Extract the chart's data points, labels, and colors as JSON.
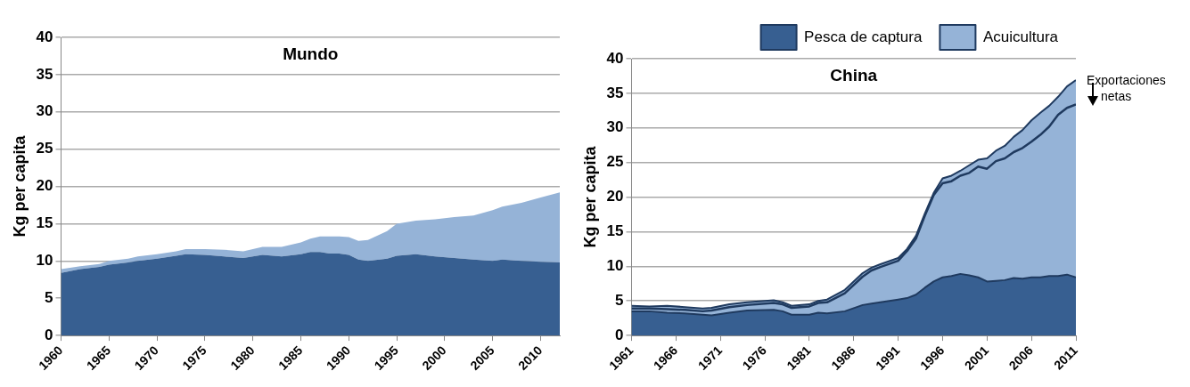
{
  "chart_data": [
    {
      "type": "area",
      "title": "Mundo",
      "ylabel": "Kg per capita",
      "stacked": true,
      "x": [
        1960,
        1962,
        1964,
        1965,
        1967,
        1968,
        1970,
        1972,
        1973,
        1975,
        1977,
        1979,
        1981,
        1983,
        1985,
        1986,
        1987,
        1988,
        1989,
        1990,
        1991,
        1992,
        1994,
        1995,
        1997,
        1999,
        2001,
        2003,
        2005,
        2006,
        2008,
        2010,
        2012
      ],
      "series": [
        {
          "color": "#375f91",
          "values": [
            8.4,
            8.9,
            9.2,
            9.5,
            9.8,
            10.0,
            10.3,
            10.7,
            10.9,
            10.8,
            10.6,
            10.4,
            10.8,
            10.6,
            10.9,
            11.2,
            11.2,
            11.0,
            11.0,
            10.8,
            10.2,
            10.0,
            10.3,
            10.7,
            10.9,
            10.6,
            10.4,
            10.2,
            10.0,
            10.2,
            10.0,
            9.9,
            9.8
          ]
        },
        {
          "color": "#95b3d7",
          "values": [
            0.5,
            0.4,
            0.4,
            0.5,
            0.5,
            0.6,
            0.6,
            0.6,
            0.7,
            0.8,
            0.9,
            0.9,
            1.1,
            1.3,
            1.6,
            1.8,
            2.1,
            2.3,
            2.3,
            2.4,
            2.5,
            2.8,
            3.7,
            4.3,
            4.5,
            5.0,
            5.5,
            5.9,
            6.8,
            7.1,
            7.8,
            8.6,
            9.4
          ]
        }
      ],
      "xlim": [
        1960,
        2012
      ],
      "xticks": [
        1960,
        1965,
        1970,
        1975,
        1980,
        1985,
        1990,
        1995,
        2000,
        2005,
        2010
      ],
      "ylim": [
        0,
        40
      ],
      "yticks": [
        0,
        5,
        10,
        15,
        20,
        25,
        30,
        35,
        40
      ],
      "grid": "y",
      "legend": false
    },
    {
      "type": "area",
      "title": "China",
      "ylabel": "Kg per capita",
      "stacked": true,
      "x": [
        1961,
        1963,
        1965,
        1967,
        1969,
        1970,
        1972,
        1974,
        1977,
        1978,
        1979,
        1981,
        1982,
        1983,
        1985,
        1987,
        1988,
        1989,
        1991,
        1992,
        1993,
        1994,
        1995,
        1996,
        1997,
        1998,
        1999,
        2000,
        2001,
        2002,
        2003,
        2004,
        2005,
        2006,
        2007,
        2008,
        2009,
        2010,
        2011
      ],
      "series": [
        {
          "name": "Pesca de captura",
          "color": "#375f91",
          "values": [
            3.5,
            3.5,
            3.3,
            3.2,
            3.0,
            2.9,
            3.3,
            3.6,
            3.7,
            3.5,
            3.0,
            3.0,
            3.3,
            3.2,
            3.5,
            4.4,
            4.6,
            4.8,
            5.2,
            5.4,
            5.9,
            6.9,
            7.8,
            8.4,
            8.6,
            8.9,
            8.7,
            8.4,
            7.8,
            7.9,
            8.0,
            8.3,
            8.2,
            8.4,
            8.4,
            8.6,
            8.6,
            8.8,
            8.4
          ]
        },
        {
          "name": "Acuicultura",
          "color": "#95b3d7",
          "values": [
            0.8,
            0.7,
            1.0,
            0.9,
            0.9,
            1.1,
            1.2,
            1.2,
            1.4,
            1.3,
            1.3,
            1.5,
            1.7,
            2.0,
            3.1,
            4.6,
            5.2,
            5.5,
            6.0,
            7.1,
            8.5,
            10.7,
            12.8,
            14.3,
            14.5,
            14.9,
            15.9,
            17.0,
            17.8,
            18.8,
            19.4,
            20.4,
            21.5,
            22.7,
            23.8,
            24.6,
            25.9,
            27.2,
            28.5
          ]
        },
        {
          "type": "line",
          "color": "#1f3a5f",
          "values": [
            3.9,
            3.9,
            3.8,
            3.7,
            3.5,
            3.6,
            4.1,
            4.4,
            4.7,
            4.5,
            4.0,
            4.2,
            4.7,
            4.8,
            6.1,
            8.5,
            9.4,
            9.9,
            10.8,
            12.2,
            14.0,
            17.3,
            20.3,
            22.0,
            22.3,
            23.1,
            23.5,
            24.4,
            24.1,
            25.2,
            25.6,
            26.5,
            27.1,
            28.0,
            29.0,
            30.2,
            31.9,
            32.9,
            33.4
          ]
        }
      ],
      "annotations": [
        {
          "text": "Exportaciones netas",
          "x": 2011,
          "y": 35
        }
      ],
      "xlim": [
        1961,
        2011
      ],
      "xticks": [
        1961,
        1966,
        1971,
        1976,
        1981,
        1986,
        1991,
        1996,
        2001,
        2006,
        2011
      ],
      "ylim": [
        0,
        40
      ],
      "yticks": [
        0,
        5,
        10,
        15,
        20,
        25,
        30,
        35,
        40
      ],
      "grid": "y",
      "legend": "top right"
    }
  ]
}
